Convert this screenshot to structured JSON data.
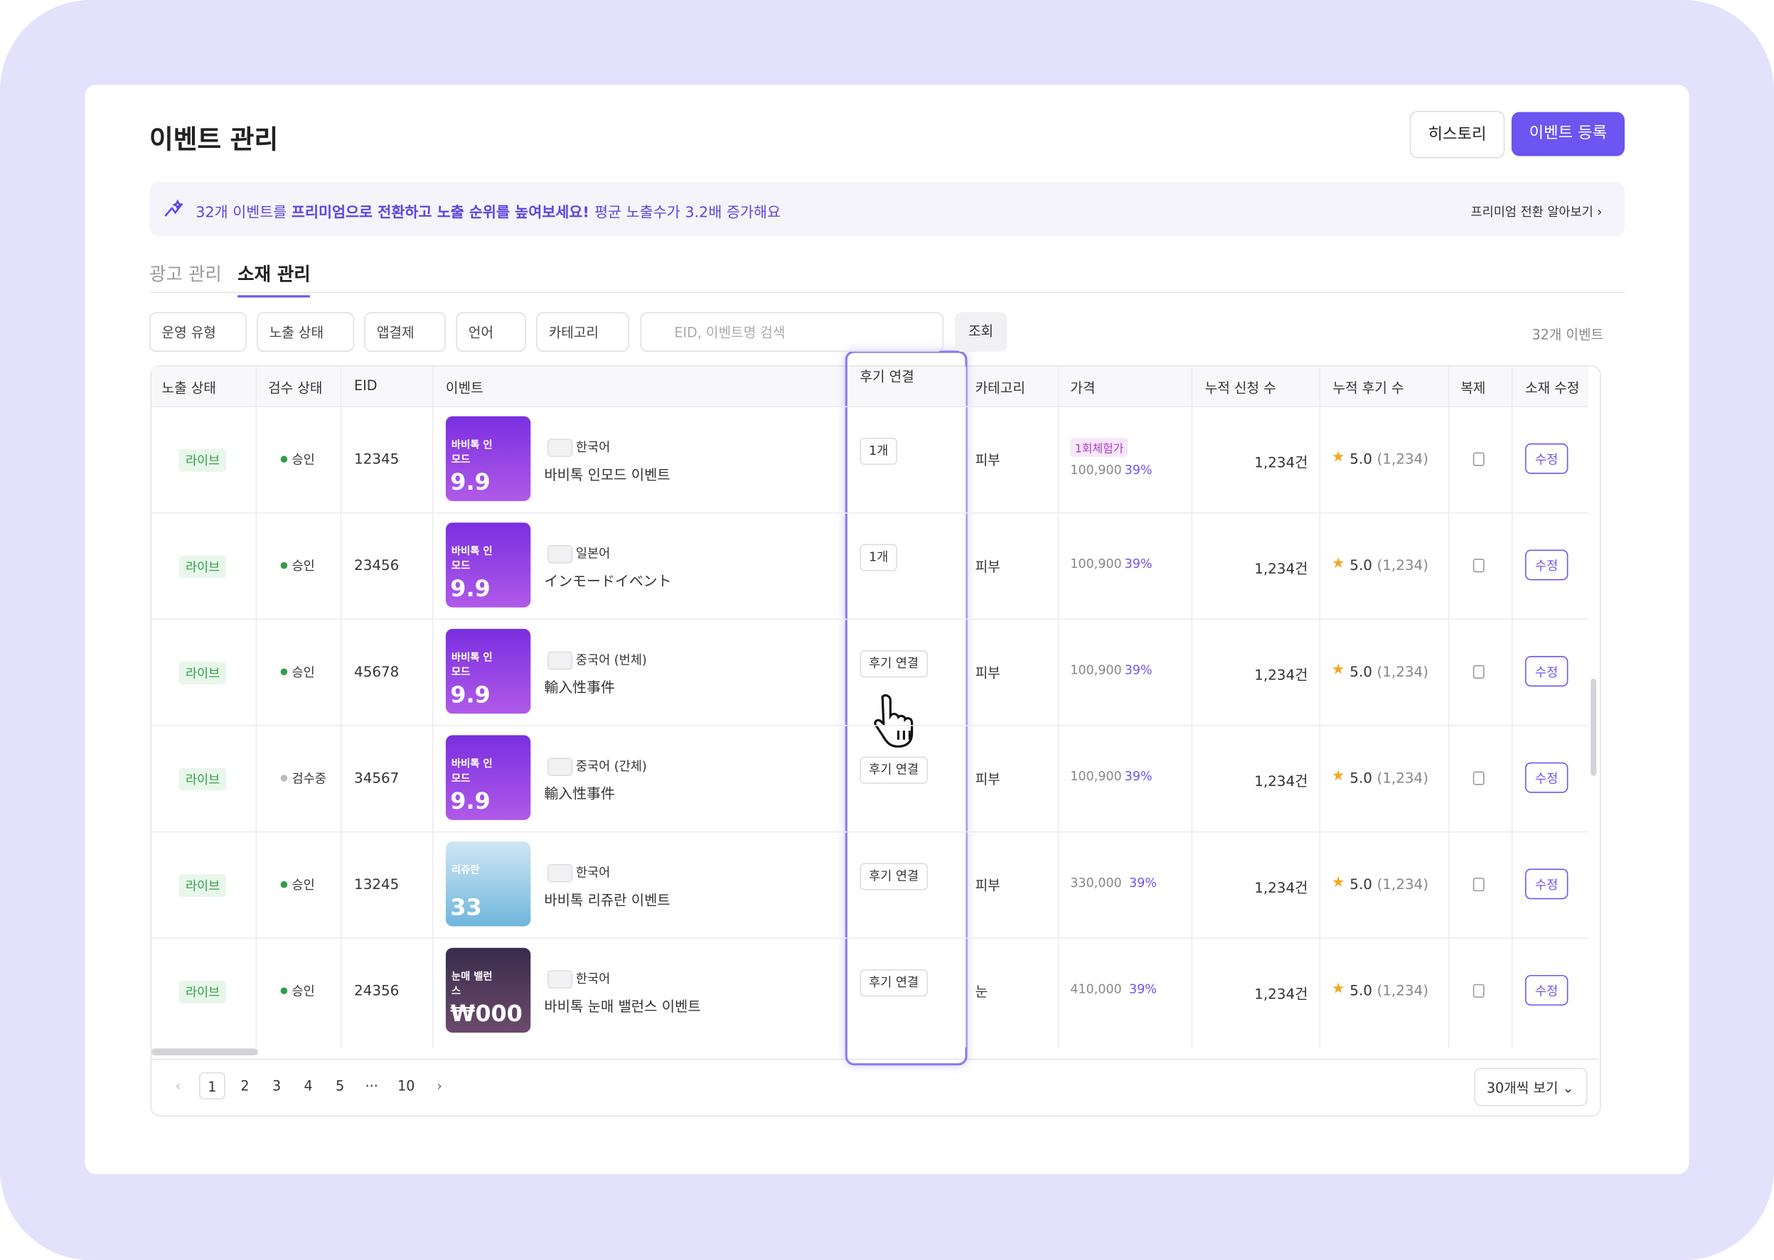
{
  "header": {
    "title": "이벤트 관리",
    "buttons": [
      "히스토리",
      "이벤트 등록"
    ]
  },
  "banner": {
    "lead": "32개 이벤트를",
    "highlight": "프리미엄으로 전환하고 노출 순위를 높여보세요!",
    "rest": "평균 노출수가 3.2배 증가해요",
    "link": "프리미엄 전환 알아보기 ›"
  },
  "tabs": [
    "광고 관리",
    "소재 관리"
  ],
  "filters": [
    "운영 유형",
    "노출 상태",
    "앱결제",
    "언어",
    "카테고리"
  ],
  "search": {
    "placeholder": "EID, 이벤트명 검색",
    "button": "조회"
  },
  "total": "32개 이벤트",
  "table": {
    "headers": [
      "노출 상태",
      "검수 상태",
      "EID",
      "이벤트",
      "후기 연결",
      "카테고리",
      "가격",
      "누적 신청 수",
      "누적 후기 수",
      "복제",
      "소재 수정"
    ],
    "rows": [
      {
        "status": "라이브",
        "review": "승인",
        "eid": "12345",
        "thumb": [
          "바비톡 인모드",
          "9.9"
        ],
        "language": "한국어",
        "name": "바비톡 인모드 이벤트",
        "link": "1개",
        "category": "피부",
        "badge": "1회체험가",
        "price": "100,900",
        "discount": "39%",
        "applied": "1,234건",
        "rating": "5.0",
        "rating_count": "(1,234)",
        "edit": "수정"
      },
      {
        "status": "라이브",
        "review": "승인",
        "eid": "23456",
        "thumb": [
          "바비톡 인모드",
          "9.9"
        ],
        "language": "일본어",
        "name": "インモードイベント",
        "link": "1개",
        "category": "피부",
        "price": "100,900",
        "discount": "39%",
        "applied": "1,234건",
        "rating": "5.0",
        "rating_count": "(1,234)",
        "edit": "수정"
      },
      {
        "status": "라이브",
        "review": "승인",
        "eid": "45678",
        "thumb": [
          "바비톡 인모드",
          "9.9"
        ],
        "language": "중국어 (번체)",
        "name": "輸入性事件",
        "link": "후기 연결",
        "category": "피부",
        "price": "100,900",
        "discount": "39%",
        "applied": "1,234건",
        "rating": "5.0",
        "rating_count": "(1,234)",
        "edit": "수정"
      },
      {
        "status": "라이브",
        "review": "검수중",
        "eid": "34567",
        "thumb": [
          "바비톡 인모드",
          "9.9"
        ],
        "language": "중국어 (간체)",
        "name": "輸入性事件",
        "link": "후기 연결",
        "category": "피부",
        "price": "100,900",
        "discount": "39%",
        "applied": "1,234건",
        "rating": "5.0",
        "rating_count": "(1,234)",
        "edit": "수정"
      },
      {
        "status": "라이브",
        "review": "승인",
        "eid": "13245",
        "thumb": [
          "리쥬란",
          "33"
        ],
        "language": "한국어",
        "name": "바비톡 리쥬란 이벤트",
        "link": "후기 연결",
        "category": "피부",
        "price": "330,000",
        "discount": "39%",
        "applied": "1,234건",
        "rating": "5.0",
        "rating_count": "(1,234)",
        "edit": "수정"
      },
      {
        "status": "라이브",
        "review": "승인",
        "eid": "24356",
        "thumb": [
          "눈매 밸런스",
          "₩000"
        ],
        "language": "한국어",
        "name": "바비톡 눈매 밸런스 이벤트",
        "link": "후기 연결",
        "category": "눈",
        "price": "410,000",
        "discount": "39%",
        "applied": "1,234건",
        "rating": "5.0",
        "rating_count": "(1,234)",
        "edit": "수정"
      }
    ]
  },
  "pagination": {
    "pages": [
      "1",
      "2",
      "3",
      "4",
      "5",
      "···",
      "10"
    ],
    "page_size": "30개씩 보기 ⌄"
  }
}
